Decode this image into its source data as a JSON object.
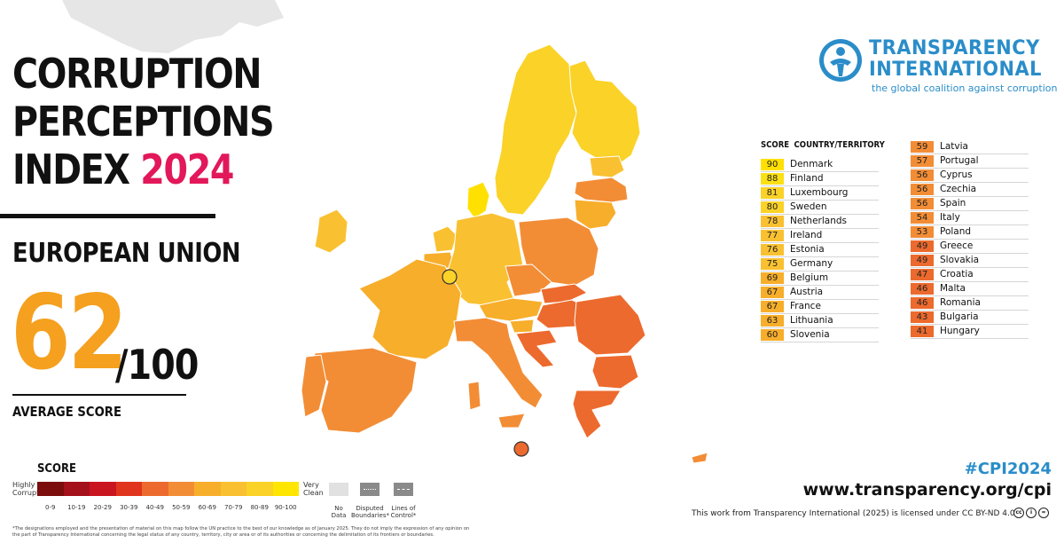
{
  "title": {
    "line1": "CORRUPTION",
    "line2": "PERCEPTIONS",
    "line3_prefix": "INDEX",
    "year": "2024"
  },
  "region": "EUROPEAN UNION",
  "score": {
    "value": "62",
    "out_of": "/100",
    "label": "AVERAGE SCORE"
  },
  "brand": {
    "name_line1": "TRANSPARENCY",
    "name_line2": "INTERNATIONAL",
    "tagline": "the global coalition against corruption",
    "logo_icon": "globe-figure-icon",
    "color": "#2a8dc9"
  },
  "table": {
    "header_score": "SCORE",
    "header_country": "COUNTRY/TERRITORY",
    "rows": [
      {
        "score": "90",
        "country": "Denmark",
        "color": "#ffe000"
      },
      {
        "score": "88",
        "country": "Finland",
        "color": "#fbe014"
      },
      {
        "score": "81",
        "country": "Luxembourg",
        "color": "#fbd227"
      },
      {
        "score": "80",
        "country": "Sweden",
        "color": "#fbd227"
      },
      {
        "score": "78",
        "country": "Netherlands",
        "color": "#f9c131"
      },
      {
        "score": "77",
        "country": "Ireland",
        "color": "#f9c131"
      },
      {
        "score": "76",
        "country": "Estonia",
        "color": "#f9c131"
      },
      {
        "score": "75",
        "country": "Germany",
        "color": "#f9c131"
      },
      {
        "score": "69",
        "country": "Belgium",
        "color": "#f7ae2b"
      },
      {
        "score": "67",
        "country": "Austria",
        "color": "#f7ae2b"
      },
      {
        "score": "67",
        "country": "France",
        "color": "#f7ae2b"
      },
      {
        "score": "63",
        "country": "Lithuania",
        "color": "#f7ae2b"
      },
      {
        "score": "60",
        "country": "Slovenia",
        "color": "#f7ae2b"
      },
      {
        "score": "59",
        "country": "Latvia",
        "color": "#f28d36"
      },
      {
        "score": "57",
        "country": "Portugal",
        "color": "#f28d36"
      },
      {
        "score": "56",
        "country": "Cyprus",
        "color": "#f28d36"
      },
      {
        "score": "56",
        "country": "Czechia",
        "color": "#f28d36"
      },
      {
        "score": "56",
        "country": "Spain",
        "color": "#f28d36"
      },
      {
        "score": "54",
        "country": "Italy",
        "color": "#f28d36"
      },
      {
        "score": "53",
        "country": "Poland",
        "color": "#f28d36"
      },
      {
        "score": "49",
        "country": "Greece",
        "color": "#ec6a2d"
      },
      {
        "score": "49",
        "country": "Slovakia",
        "color": "#ec6a2d"
      },
      {
        "score": "47",
        "country": "Croatia",
        "color": "#ec6a2d"
      },
      {
        "score": "46",
        "country": "Malta",
        "color": "#ec6a2d"
      },
      {
        "score": "46",
        "country": "Romania",
        "color": "#ec6a2d"
      },
      {
        "score": "43",
        "country": "Bulgaria",
        "color": "#ec6a2d"
      },
      {
        "score": "41",
        "country": "Hungary",
        "color": "#ec6a2d"
      }
    ]
  },
  "legend": {
    "title": "SCORE",
    "low_label_1": "Highly",
    "low_label_2": "Corrupt",
    "high_label_1": "Very",
    "high_label_2": "Clean",
    "bins": [
      {
        "label": "0-9",
        "color": "#7b0d0d"
      },
      {
        "label": "10-19",
        "color": "#a4111b"
      },
      {
        "label": "20-29",
        "color": "#c9151f"
      },
      {
        "label": "30-39",
        "color": "#e0341e"
      },
      {
        "label": "40-49",
        "color": "#ec6a2d"
      },
      {
        "label": "50-59",
        "color": "#f28d36"
      },
      {
        "label": "60-69",
        "color": "#f7ae2b"
      },
      {
        "label": "70-79",
        "color": "#f9c131"
      },
      {
        "label": "80-89",
        "color": "#fbd227"
      },
      {
        "label": "90-100",
        "color": "#ffe600"
      }
    ],
    "no_data": "No Data",
    "disputed_1": "Disputed",
    "disputed_2": "Boundaries*",
    "lines_1": "Lines of",
    "lines_2": "Control*"
  },
  "disclaimer": "*The designations employed and the presentation of material on this map follow the UN practice to the best of our knowledge as of January 2025. They do not imply the expression of any opinion on the part of Transparency International concerning the legal status of any country, territory, city or area or of its authorities or concerning the delimitation of its frontiers or boundaries.",
  "footer": {
    "hashtag": "#CPI2024",
    "website": "www.transparency.org/cpi",
    "license": "This work from Transparency International (2025) is licensed under CC BY-ND 4.0",
    "cc_icons": [
      "cc-icon",
      "by-icon",
      "nd-icon"
    ]
  }
}
